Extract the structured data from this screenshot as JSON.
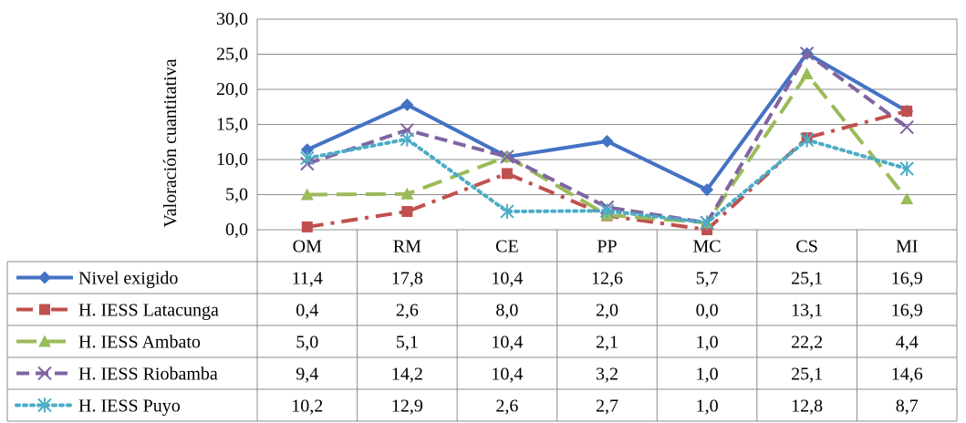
{
  "chart_data": {
    "type": "line",
    "ylabel": "Valoración cuantitativa",
    "ylim": [
      0,
      30
    ],
    "yticks": [
      "0,0",
      "5,0",
      "10,0",
      "15,0",
      "20,0",
      "25,0",
      "30,0"
    ],
    "categories": [
      "OM",
      "RM",
      "CE",
      "PP",
      "MC",
      "CS",
      "MI"
    ],
    "grid": "horizontal",
    "legend": "data-table-left",
    "series": [
      {
        "name": "Nivel exigido",
        "color": "#4472C4",
        "marker": "diamond",
        "dash": "solid",
        "values": [
          11.4,
          17.8,
          10.4,
          12.6,
          5.7,
          25.1,
          16.9
        ],
        "labels": [
          "11,4",
          "17,8",
          "10,4",
          "12,6",
          "5,7",
          "25,1",
          "16,9"
        ]
      },
      {
        "name": "H. IESS Latacunga",
        "color": "#C0504D",
        "marker": "square",
        "dash": "dash-dot",
        "values": [
          0.4,
          2.6,
          8.0,
          2.0,
          0.0,
          13.1,
          16.9
        ],
        "labels": [
          "0,4",
          "2,6",
          "8,0",
          "2,0",
          "0,0",
          "13,1",
          "16,9"
        ]
      },
      {
        "name": "H. IESS Ambato",
        "color": "#9BBB59",
        "marker": "triangle",
        "dash": "long-dash",
        "values": [
          5.0,
          5.1,
          10.4,
          2.1,
          1.0,
          22.2,
          4.4
        ],
        "labels": [
          "5,0",
          "5,1",
          "10,4",
          "2,1",
          "1,0",
          "22,2",
          "4,4"
        ]
      },
      {
        "name": "H. IESS Riobamba",
        "color": "#8064A2",
        "marker": "x",
        "dash": "dash",
        "values": [
          9.4,
          14.2,
          10.4,
          3.2,
          1.0,
          25.1,
          14.6
        ],
        "labels": [
          "9,4",
          "14,2",
          "10,4",
          "3,2",
          "1,0",
          "25,1",
          "14,6"
        ]
      },
      {
        "name": "H. IESS Puyo",
        "color": "#4BACC6",
        "marker": "star",
        "dash": "dot",
        "values": [
          10.2,
          12.9,
          2.6,
          2.7,
          1.0,
          12.8,
          8.7
        ],
        "labels": [
          "10,2",
          "12,9",
          "2,6",
          "2,7",
          "1,0",
          "12,8",
          "8,7"
        ]
      }
    ]
  }
}
